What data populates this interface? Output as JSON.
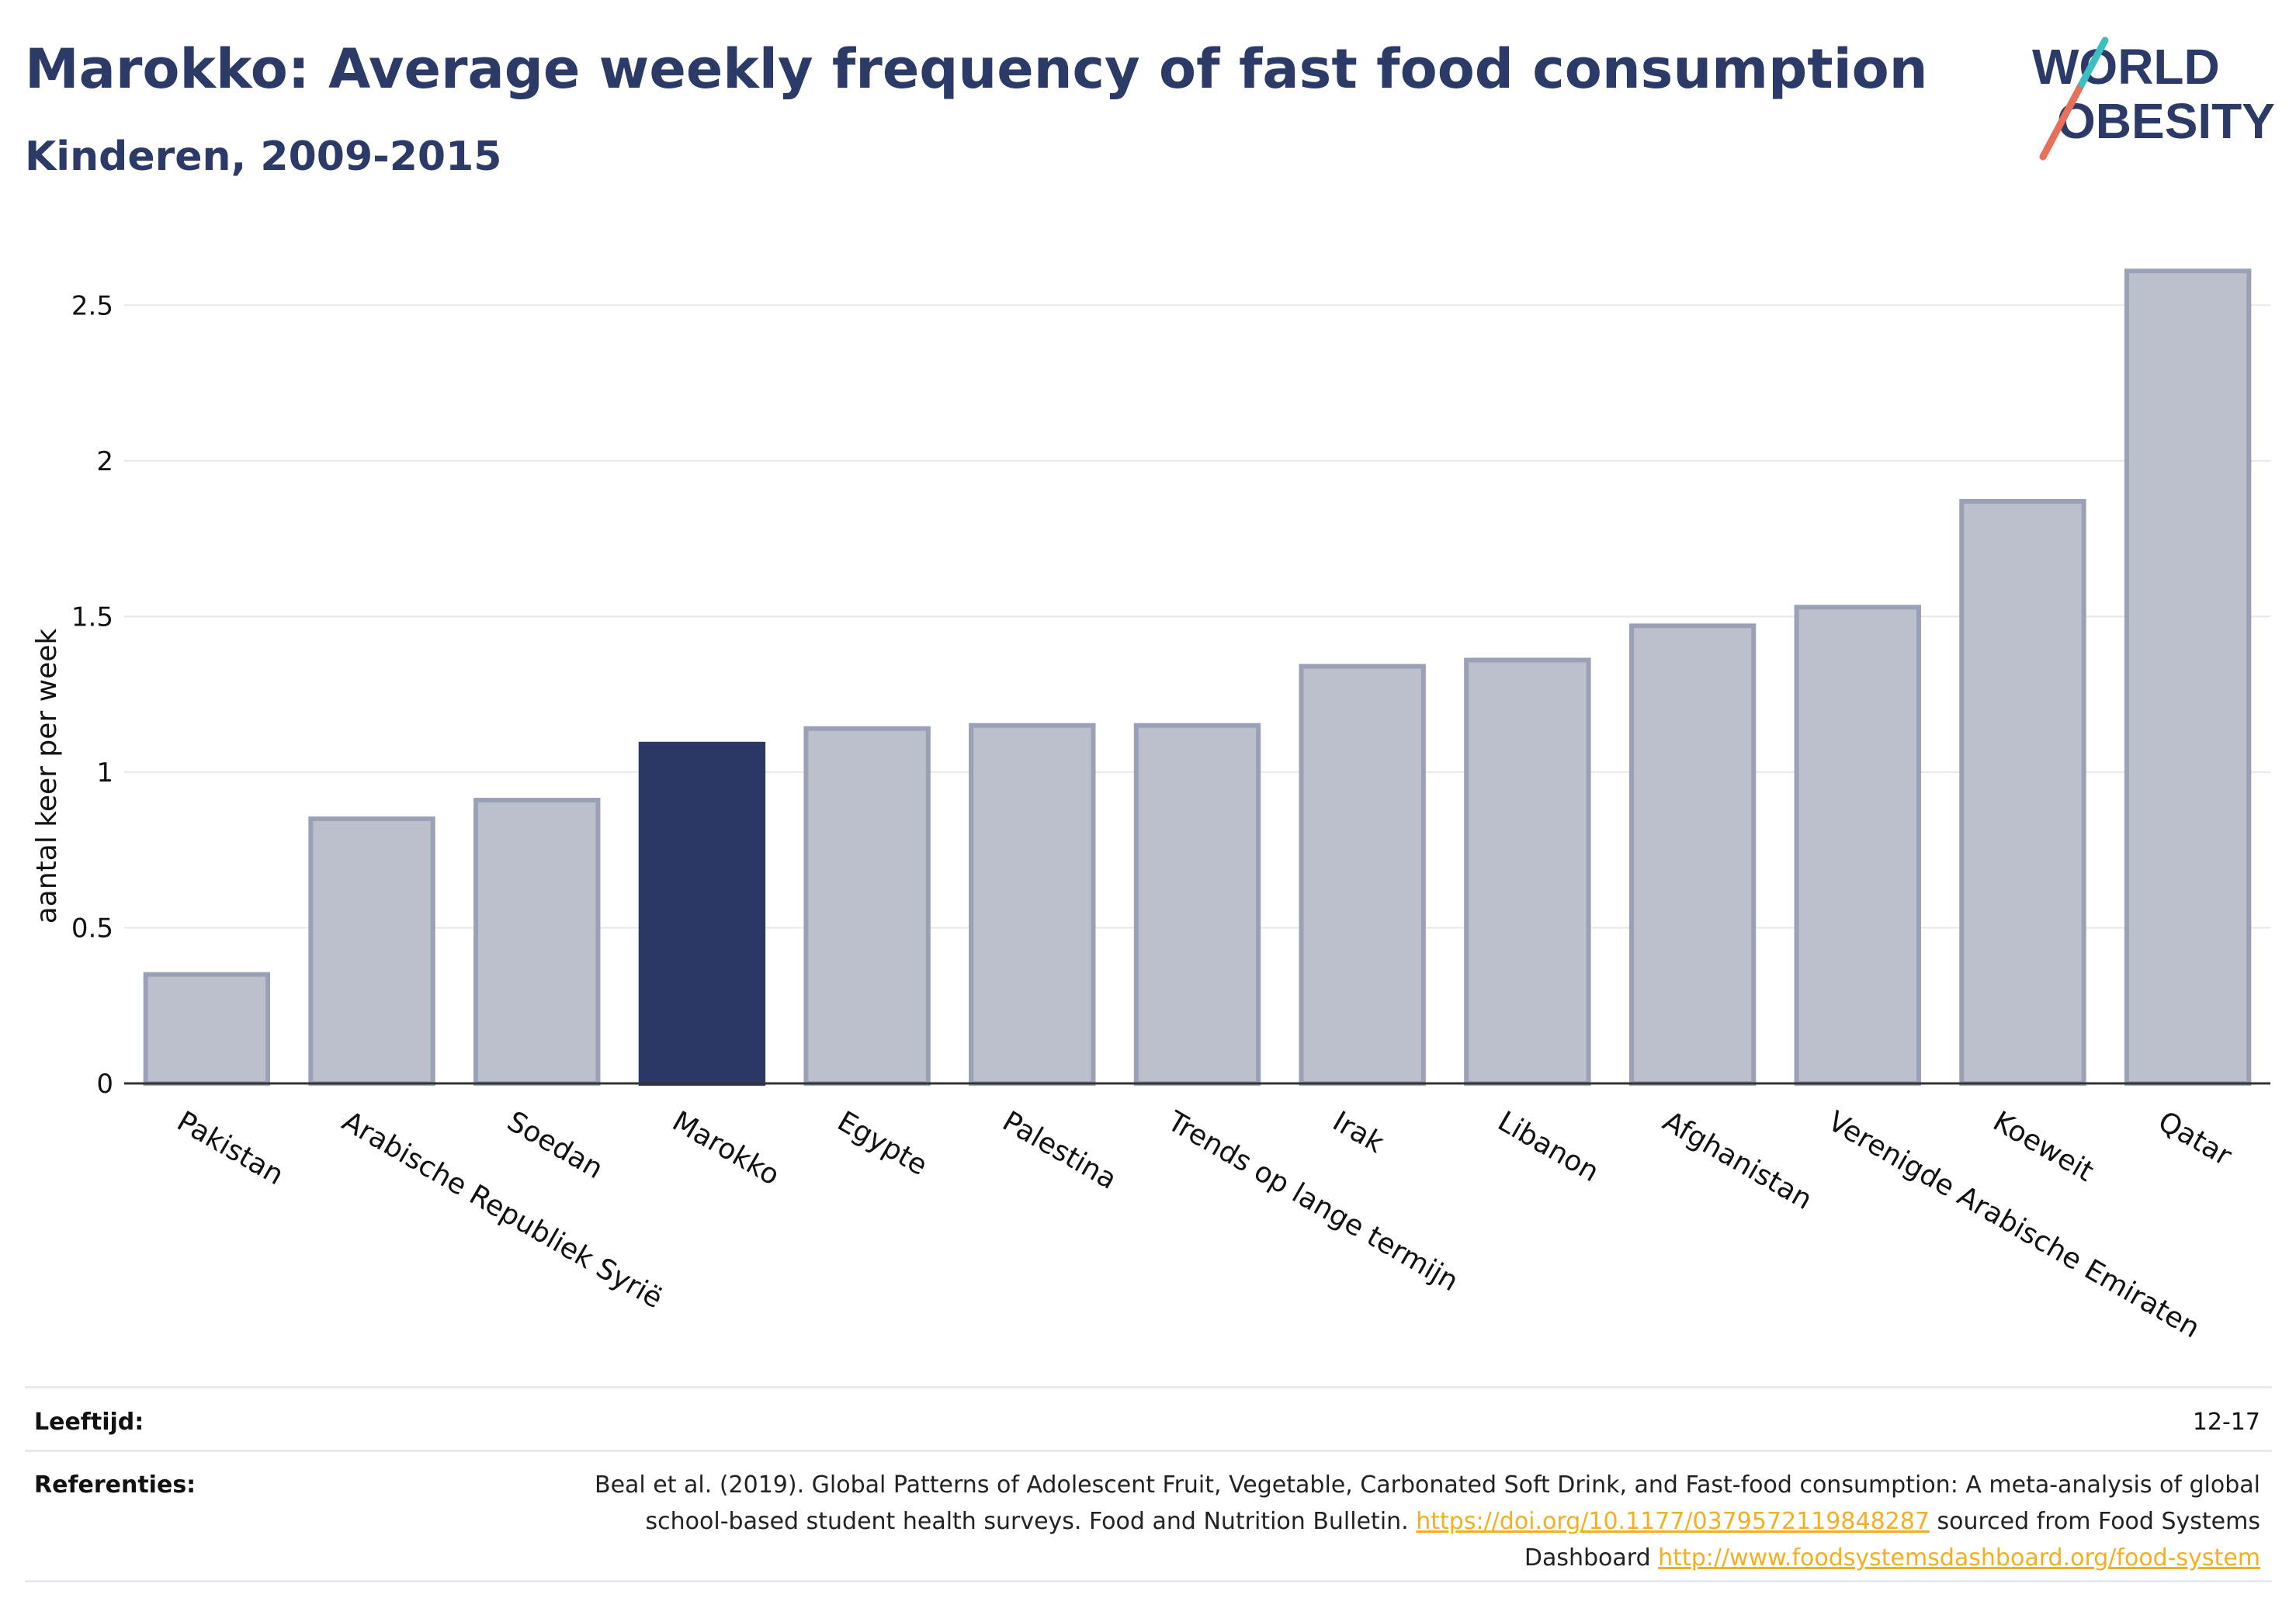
{
  "header": {
    "title": "Marokko: Average weekly frequency of fast food consumption",
    "subtitle": "Kinderen, 2009-2015"
  },
  "logo": {
    "line1": "WORLD",
    "line2": "OBESITY",
    "text_color": "#2b3a67",
    "slash_colors": [
      "#e8705a",
      "#3bbfbf"
    ]
  },
  "chart_data": {
    "type": "bar",
    "categories": [
      "Pakistan",
      "Arabische Republiek Syrië",
      "Soedan",
      "Marokko",
      "Egypte",
      "Palestina",
      "Trends op lange termijn",
      "Irak",
      "Libanon",
      "Afghanistan",
      "Verenigde Arabische Emiraten",
      "Koeweit",
      "Qatar"
    ],
    "values": [
      0.35,
      0.85,
      0.91,
      1.09,
      1.14,
      1.15,
      1.15,
      1.34,
      1.36,
      1.47,
      1.53,
      1.87,
      2.61
    ],
    "highlight": "Marokko",
    "title": "",
    "xlabel": "",
    "ylabel": "aantal keer per week",
    "ylim": [
      0,
      2.75
    ],
    "yticks": [
      0,
      0.5,
      1,
      1.5,
      2,
      2.5
    ],
    "ytick_labels": [
      "0",
      "0.5",
      "1",
      "1.5",
      "2",
      "2.5"
    ],
    "grid": true,
    "legend": "none",
    "colors": {
      "bar": "#bcc0cd",
      "bar_edge": "#9aa0b6",
      "highlight": "#2b3764"
    }
  },
  "meta": {
    "age_label": "Leeftijd:",
    "age_value": "12-17",
    "refs_label": "Referenties:",
    "refs_text_1": "Beal et al. (2019). Global Patterns of Adolescent Fruit, Vegetable, Carbonated Soft Drink, and Fast-food consumption: A meta-analysis of global school-based student health surveys. Food and Nutrition Bulletin. ",
    "refs_link_1": "https://doi.org/10.1177/0379572119848287",
    "refs_text_2": " sourced from Food Systems Dashboard ",
    "refs_link_2": "http://www.foodsystemsdashboard.org/food-system"
  }
}
